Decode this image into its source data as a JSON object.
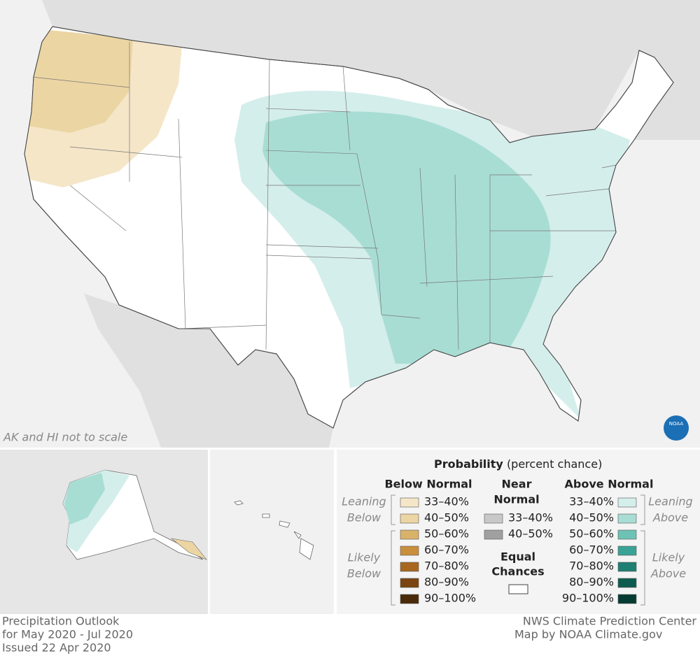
{
  "map": {
    "note": "AK and HI not to scale",
    "logo": "NOAA"
  },
  "legend": {
    "title": "Probability",
    "subtitle": "(percent chance)",
    "below": {
      "heading": "Below Normal",
      "leaning": [
        "Leaning",
        "Below"
      ],
      "likely": [
        "Likely",
        "Below"
      ],
      "items": [
        "33–40%",
        "40–50%",
        "50–60%",
        "60–70%",
        "70–80%",
        "80–90%",
        "90–100%"
      ]
    },
    "near": {
      "heading": [
        "Near",
        "Normal"
      ],
      "items": [
        "33–40%",
        "40–50%"
      ]
    },
    "equal": [
      "Equal",
      "Chances"
    ],
    "above": {
      "heading": "Above Normal",
      "leaning": [
        "Leaning",
        "Above"
      ],
      "likely": [
        "Likely",
        "Above"
      ],
      "items": [
        "33–40%",
        "40–50%",
        "50–60%",
        "60–70%",
        "70–80%",
        "80–90%",
        "90–100%"
      ]
    }
  },
  "footer": {
    "left": [
      "Precipitation Outlook",
      "for May 2020 - Jul 2020",
      "Issued 22 Apr 2020"
    ],
    "right": [
      "NWS Climate Prediction Center",
      "Map by NOAA Climate.gov"
    ]
  }
}
